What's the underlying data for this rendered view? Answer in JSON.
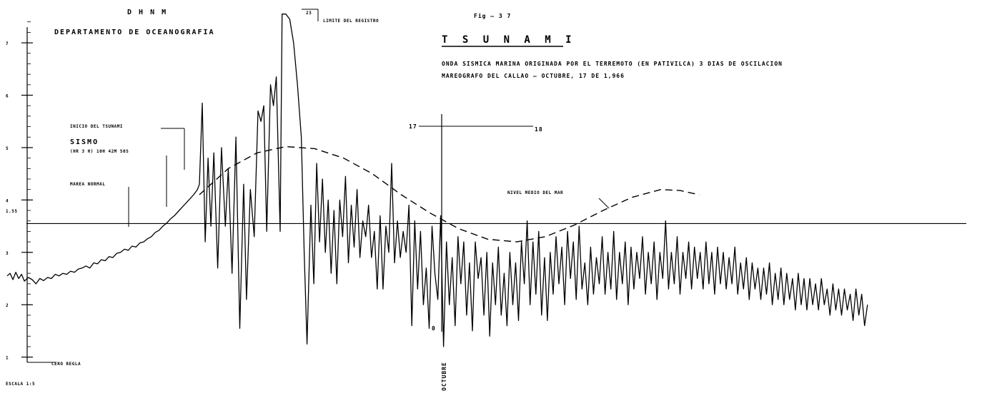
{
  "header": {
    "org": "D H N M",
    "department": "DEPARTAMENTO  DE  OCEANOGRAFIA",
    "figure": "Fig — 3 7",
    "title": "T S U N A M I",
    "subtitle1": "ONDA SISMICA MARINA ORIGINADA POR EL TERREMOTO (EN PATIVILCA) 3 DIAS DE OSCILACION",
    "subtitle2": "MAREOGRAFO DEL CALLAO — OCTUBRE, 17 DE 1,966"
  },
  "chart_data": {
    "type": "line",
    "title": "T S U N A M I",
    "annotations": {
      "limit": "LIMITE DEL REGISTRO",
      "limit_hour": "23",
      "sismo": "SISMO",
      "sismo_sub": "(HR 3 H) 10H 42M 50S",
      "start_note": "INICIO DEL TSUNAMI",
      "normal_tide": "MAREA NORMAL",
      "mean_sea_level": "NIVEL MEDIO DEL MAR",
      "day17": "17",
      "day18": "18",
      "octubre": "OCTUBRE",
      "zero_hour": "0",
      "scale": "ESCALA  1:5",
      "zero_ref": "CERO REGLA"
    },
    "y_ticks": [
      "7",
      "6",
      "5",
      "4",
      "3",
      "2",
      "1"
    ],
    "y_ref": "1.55",
    "ylim": [
      0.9,
      7.6
    ],
    "xlim": [
      0,
      1000
    ],
    "mean_level": 3.55,
    "signal": [
      [
        0,
        2.55
      ],
      [
        3,
        2.6
      ],
      [
        6,
        2.48
      ],
      [
        9,
        2.62
      ],
      [
        12,
        2.5
      ],
      [
        15,
        2.58
      ],
      [
        18,
        2.45
      ],
      [
        22,
        2.52
      ],
      [
        26,
        2.48
      ],
      [
        30,
        2.4
      ],
      [
        34,
        2.5
      ],
      [
        38,
        2.46
      ],
      [
        42,
        2.52
      ],
      [
        46,
        2.5
      ],
      [
        50,
        2.58
      ],
      [
        54,
        2.55
      ],
      [
        58,
        2.6
      ],
      [
        62,
        2.58
      ],
      [
        66,
        2.64
      ],
      [
        70,
        2.62
      ],
      [
        74,
        2.68
      ],
      [
        78,
        2.7
      ],
      [
        82,
        2.74
      ],
      [
        86,
        2.7
      ],
      [
        90,
        2.8
      ],
      [
        94,
        2.78
      ],
      [
        98,
        2.86
      ],
      [
        102,
        2.84
      ],
      [
        106,
        2.92
      ],
      [
        110,
        2.9
      ],
      [
        114,
        2.98
      ],
      [
        118,
        3.0
      ],
      [
        122,
        3.06
      ],
      [
        126,
        3.04
      ],
      [
        130,
        3.12
      ],
      [
        134,
        3.1
      ],
      [
        138,
        3.18
      ],
      [
        142,
        3.2
      ],
      [
        146,
        3.26
      ],
      [
        150,
        3.3
      ],
      [
        154,
        3.38
      ],
      [
        158,
        3.42
      ],
      [
        162,
        3.5
      ],
      [
        166,
        3.56
      ],
      [
        170,
        3.64
      ],
      [
        174,
        3.7
      ],
      [
        178,
        3.78
      ],
      [
        182,
        3.86
      ],
      [
        186,
        3.94
      ],
      [
        190,
        4.02
      ],
      [
        194,
        4.1
      ],
      [
        198,
        4.2
      ],
      [
        200,
        4.3
      ],
      [
        203,
        5.85
      ],
      [
        206,
        3.2
      ],
      [
        209,
        4.8
      ],
      [
        212,
        3.5
      ],
      [
        215,
        4.9
      ],
      [
        219,
        2.7
      ],
      [
        223,
        5.0
      ],
      [
        227,
        3.5
      ],
      [
        230,
        4.6
      ],
      [
        234,
        2.6
      ],
      [
        238,
        5.2
      ],
      [
        242,
        1.55
      ],
      [
        246,
        4.3
      ],
      [
        249,
        2.1
      ],
      [
        253,
        4.2
      ],
      [
        257,
        3.3
      ],
      [
        261,
        5.7
      ],
      [
        264,
        5.5
      ],
      [
        267,
        5.8
      ],
      [
        270,
        3.4
      ],
      [
        274,
        6.2
      ],
      [
        277,
        5.8
      ],
      [
        280,
        6.35
      ],
      [
        284,
        3.4
      ],
      [
        286,
        7.55
      ],
      [
        290,
        7.55
      ],
      [
        294,
        7.45
      ],
      [
        298,
        7.0
      ],
      [
        302,
        6.2
      ],
      [
        306,
        5.2
      ],
      [
        309,
        3.0
      ],
      [
        312,
        1.25
      ],
      [
        316,
        3.9
      ],
      [
        319,
        2.4
      ],
      [
        322,
        4.7
      ],
      [
        325,
        3.2
      ],
      [
        328,
        4.4
      ],
      [
        331,
        3.0
      ],
      [
        334,
        4.0
      ],
      [
        337,
        2.6
      ],
      [
        340,
        3.8
      ],
      [
        343,
        2.4
      ],
      [
        346,
        4.0
      ],
      [
        349,
        3.3
      ],
      [
        352,
        4.45
      ],
      [
        355,
        2.8
      ],
      [
        358,
        3.9
      ],
      [
        361,
        3.1
      ],
      [
        364,
        4.2
      ],
      [
        367,
        2.9
      ],
      [
        370,
        3.6
      ],
      [
        373,
        3.3
      ],
      [
        376,
        3.9
      ],
      [
        379,
        2.9
      ],
      [
        382,
        3.4
      ],
      [
        385,
        2.3
      ],
      [
        388,
        3.7
      ],
      [
        391,
        2.3
      ],
      [
        394,
        3.5
      ],
      [
        397,
        3.0
      ],
      [
        400,
        4.7
      ],
      [
        403,
        2.8
      ],
      [
        406,
        3.6
      ],
      [
        409,
        2.9
      ],
      [
        412,
        3.4
      ],
      [
        415,
        3.0
      ],
      [
        418,
        3.9
      ],
      [
        421,
        1.6
      ],
      [
        424,
        3.6
      ],
      [
        427,
        2.3
      ],
      [
        430,
        3.4
      ],
      [
        433,
        2.0
      ],
      [
        436,
        2.7
      ],
      [
        439,
        1.55
      ],
      [
        442,
        3.5
      ],
      [
        445,
        2.6
      ],
      [
        448,
        2.1
      ],
      [
        451,
        3.7
      ],
      [
        454,
        1.2
      ],
      [
        457,
        3.2
      ],
      [
        460,
        2.0
      ],
      [
        463,
        2.9
      ],
      [
        466,
        1.6
      ],
      [
        469,
        3.3
      ],
      [
        472,
        2.4
      ],
      [
        475,
        3.2
      ],
      [
        478,
        1.8
      ],
      [
        481,
        2.8
      ],
      [
        484,
        1.5
      ],
      [
        487,
        3.2
      ],
      [
        490,
        2.5
      ],
      [
        493,
        2.9
      ],
      [
        496,
        1.8
      ],
      [
        499,
        3.0
      ],
      [
        502,
        1.4
      ],
      [
        505,
        2.8
      ],
      [
        508,
        2.0
      ],
      [
        511,
        3.1
      ],
      [
        514,
        1.8
      ],
      [
        517,
        2.6
      ],
      [
        520,
        1.6
      ],
      [
        523,
        3.0
      ],
      [
        526,
        2.0
      ],
      [
        529,
        2.8
      ],
      [
        532,
        1.7
      ],
      [
        535,
        3.2
      ],
      [
        538,
        2.4
      ],
      [
        541,
        3.6
      ],
      [
        544,
        2.0
      ],
      [
        547,
        3.2
      ],
      [
        550,
        2.2
      ],
      [
        553,
        3.4
      ],
      [
        556,
        1.8
      ],
      [
        559,
        2.9
      ],
      [
        562,
        1.7
      ],
      [
        565,
        3.0
      ],
      [
        568,
        2.2
      ],
      [
        571,
        3.3
      ],
      [
        574,
        2.4
      ],
      [
        577,
        3.1
      ],
      [
        580,
        2.0
      ],
      [
        583,
        3.4
      ],
      [
        586,
        2.5
      ],
      [
        589,
        3.2
      ],
      [
        592,
        2.1
      ],
      [
        595,
        3.5
      ],
      [
        598,
        2.3
      ],
      [
        601,
        2.8
      ],
      [
        604,
        2.0
      ],
      [
        607,
        3.1
      ],
      [
        610,
        2.2
      ],
      [
        613,
        2.9
      ],
      [
        616,
        2.4
      ],
      [
        619,
        3.3
      ],
      [
        622,
        2.2
      ],
      [
        625,
        3.0
      ],
      [
        628,
        2.3
      ],
      [
        631,
        3.4
      ],
      [
        634,
        2.1
      ],
      [
        637,
        3.0
      ],
      [
        640,
        2.4
      ],
      [
        643,
        3.2
      ],
      [
        646,
        2.0
      ],
      [
        649,
        3.1
      ],
      [
        652,
        2.3
      ],
      [
        655,
        3.0
      ],
      [
        658,
        2.5
      ],
      [
        661,
        3.3
      ],
      [
        664,
        2.2
      ],
      [
        667,
        3.0
      ],
      [
        670,
        2.4
      ],
      [
        673,
        3.2
      ],
      [
        676,
        2.1
      ],
      [
        679,
        3.0
      ],
      [
        682,
        2.5
      ],
      [
        685,
        3.6
      ],
      [
        688,
        2.3
      ],
      [
        691,
        3.0
      ],
      [
        694,
        2.4
      ],
      [
        697,
        3.3
      ],
      [
        700,
        2.2
      ],
      [
        703,
        3.0
      ],
      [
        706,
        2.5
      ],
      [
        709,
        3.2
      ],
      [
        712,
        2.3
      ],
      [
        715,
        3.1
      ],
      [
        718,
        2.5
      ],
      [
        721,
        3.0
      ],
      [
        724,
        2.3
      ],
      [
        727,
        3.2
      ],
      [
        730,
        2.4
      ],
      [
        733,
        3.0
      ],
      [
        736,
        2.2
      ],
      [
        739,
        3.1
      ],
      [
        742,
        2.4
      ],
      [
        745,
        3.0
      ],
      [
        748,
        2.3
      ],
      [
        751,
        2.9
      ],
      [
        754,
        2.4
      ],
      [
        757,
        3.1
      ],
      [
        760,
        2.2
      ],
      [
        763,
        2.8
      ],
      [
        766,
        2.3
      ],
      [
        769,
        2.9
      ],
      [
        772,
        2.1
      ],
      [
        775,
        2.8
      ],
      [
        778,
        2.3
      ],
      [
        781,
        2.7
      ],
      [
        784,
        2.1
      ],
      [
        787,
        2.7
      ],
      [
        790,
        2.2
      ],
      [
        793,
        2.8
      ],
      [
        796,
        2.0
      ],
      [
        799,
        2.6
      ],
      [
        802,
        2.1
      ],
      [
        805,
        2.7
      ],
      [
        808,
        2.0
      ],
      [
        811,
        2.6
      ],
      [
        814,
        2.1
      ],
      [
        817,
        2.5
      ],
      [
        820,
        1.9
      ],
      [
        823,
        2.6
      ],
      [
        826,
        2.0
      ],
      [
        829,
        2.5
      ],
      [
        832,
        1.9
      ],
      [
        835,
        2.5
      ],
      [
        838,
        2.0
      ],
      [
        841,
        2.4
      ],
      [
        844,
        1.9
      ],
      [
        847,
        2.5
      ],
      [
        850,
        2.0
      ],
      [
        853,
        2.3
      ],
      [
        856,
        1.8
      ],
      [
        859,
        2.4
      ],
      [
        862,
        1.9
      ],
      [
        865,
        2.3
      ],
      [
        868,
        1.8
      ],
      [
        871,
        2.3
      ],
      [
        874,
        1.9
      ],
      [
        877,
        2.2
      ],
      [
        880,
        1.7
      ],
      [
        883,
        2.3
      ],
      [
        886,
        1.8
      ],
      [
        889,
        2.2
      ],
      [
        892,
        1.6
      ],
      [
        895,
        2.0
      ]
    ],
    "trend": [
      [
        200,
        4.1
      ],
      [
        230,
        4.6
      ],
      [
        260,
        4.9
      ],
      [
        290,
        5.02
      ],
      [
        320,
        4.98
      ],
      [
        350,
        4.8
      ],
      [
        380,
        4.5
      ],
      [
        410,
        4.1
      ],
      [
        440,
        3.75
      ],
      [
        470,
        3.45
      ],
      [
        500,
        3.25
      ],
      [
        530,
        3.2
      ],
      [
        560,
        3.3
      ],
      [
        590,
        3.52
      ],
      [
        620,
        3.8
      ],
      [
        650,
        4.05
      ],
      [
        680,
        4.2
      ],
      [
        700,
        4.18
      ],
      [
        720,
        4.1
      ]
    ]
  }
}
